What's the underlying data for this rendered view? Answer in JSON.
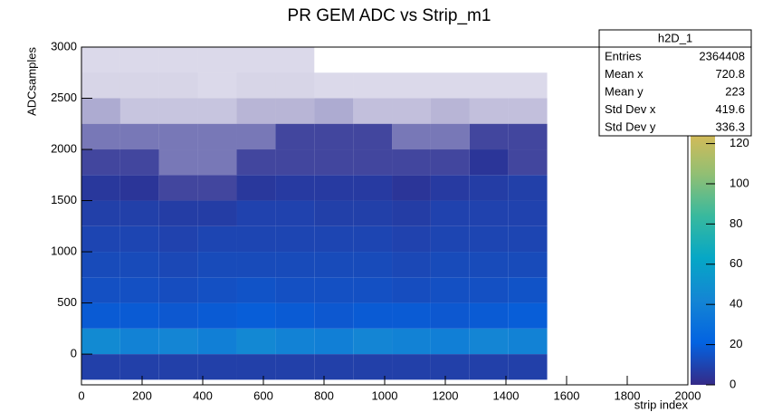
{
  "chart_data": {
    "type": "heatmap",
    "title": "PR GEM ADC vs Strip_m1",
    "x_label": "strip index",
    "y_label": "ADCsamples",
    "xlim": [
      0,
      2000
    ],
    "xticks": [
      0,
      200,
      400,
      600,
      800,
      1000,
      1200,
      1400,
      1600,
      1800,
      2000
    ],
    "ylim": [
      -300,
      3000
    ],
    "yticks": [
      0,
      500,
      1000,
      1500,
      2000,
      2500,
      3000
    ],
    "zlim": [
      0,
      168
    ],
    "zticks": [
      0,
      20,
      40,
      60,
      80,
      100,
      120
    ],
    "xbins": [
      0,
      128,
      256,
      384,
      512,
      640,
      768,
      896,
      1024,
      1152,
      1280,
      1408,
      1536
    ],
    "ybins": [
      -250,
      0,
      250,
      500,
      750,
      1000,
      1250,
      1500,
      1750,
      2000,
      2250,
      2500,
      2750,
      3000
    ],
    "z": [
      [
        8,
        8,
        8,
        8,
        8,
        8,
        8,
        8,
        8,
        8,
        8,
        8
      ],
      [
        45,
        40,
        42,
        38,
        44,
        40,
        38,
        42,
        40,
        38,
        42,
        40
      ],
      [
        18,
        18,
        17,
        18,
        19,
        18,
        17,
        18,
        18,
        17,
        18,
        19
      ],
      [
        14,
        14,
        13,
        14,
        15,
        14,
        14,
        14,
        13,
        14,
        14,
        15
      ],
      [
        12,
        12,
        11,
        12,
        12,
        12,
        12,
        12,
        11,
        12,
        12,
        12
      ],
      [
        10,
        10,
        9,
        10,
        10,
        10,
        10,
        10,
        9,
        10,
        10,
        10
      ],
      [
        8,
        8,
        7,
        7,
        9,
        9,
        8,
        8,
        7,
        9,
        9,
        9
      ],
      [
        5,
        4,
        3,
        3,
        5,
        6,
        6,
        6,
        4,
        6,
        7,
        8
      ],
      [
        3,
        3,
        2,
        2,
        3,
        3,
        3,
        3,
        3,
        3,
        4,
        3
      ],
      [
        2,
        2,
        2,
        2,
        2,
        3,
        3,
        3,
        2,
        2,
        3,
        3
      ],
      [
        1,
        0.5,
        0.5,
        0.5,
        0.8,
        0.8,
        1,
        0.6,
        0.6,
        0.8,
        0.6,
        0.6
      ],
      [
        0.2,
        0.2,
        0.2,
        0.1,
        0.2,
        0.2,
        0.1,
        0.1,
        0.1,
        0.1,
        0.1,
        0.1
      ],
      [
        0.1,
        0.1,
        0.1,
        0.1,
        0.1,
        0.1,
        0,
        0,
        0,
        0,
        0,
        0
      ]
    ],
    "stats": {
      "title": "h2D_1",
      "rows": [
        {
          "label": "Entries",
          "value": 2364408
        },
        {
          "label": "Mean x",
          "value": 720.8
        },
        {
          "label": "Mean y",
          "value": 223
        },
        {
          "label": "Std Dev x",
          "value": 419.6
        },
        {
          "label": "Std Dev y",
          "value": 336.3
        }
      ]
    }
  }
}
